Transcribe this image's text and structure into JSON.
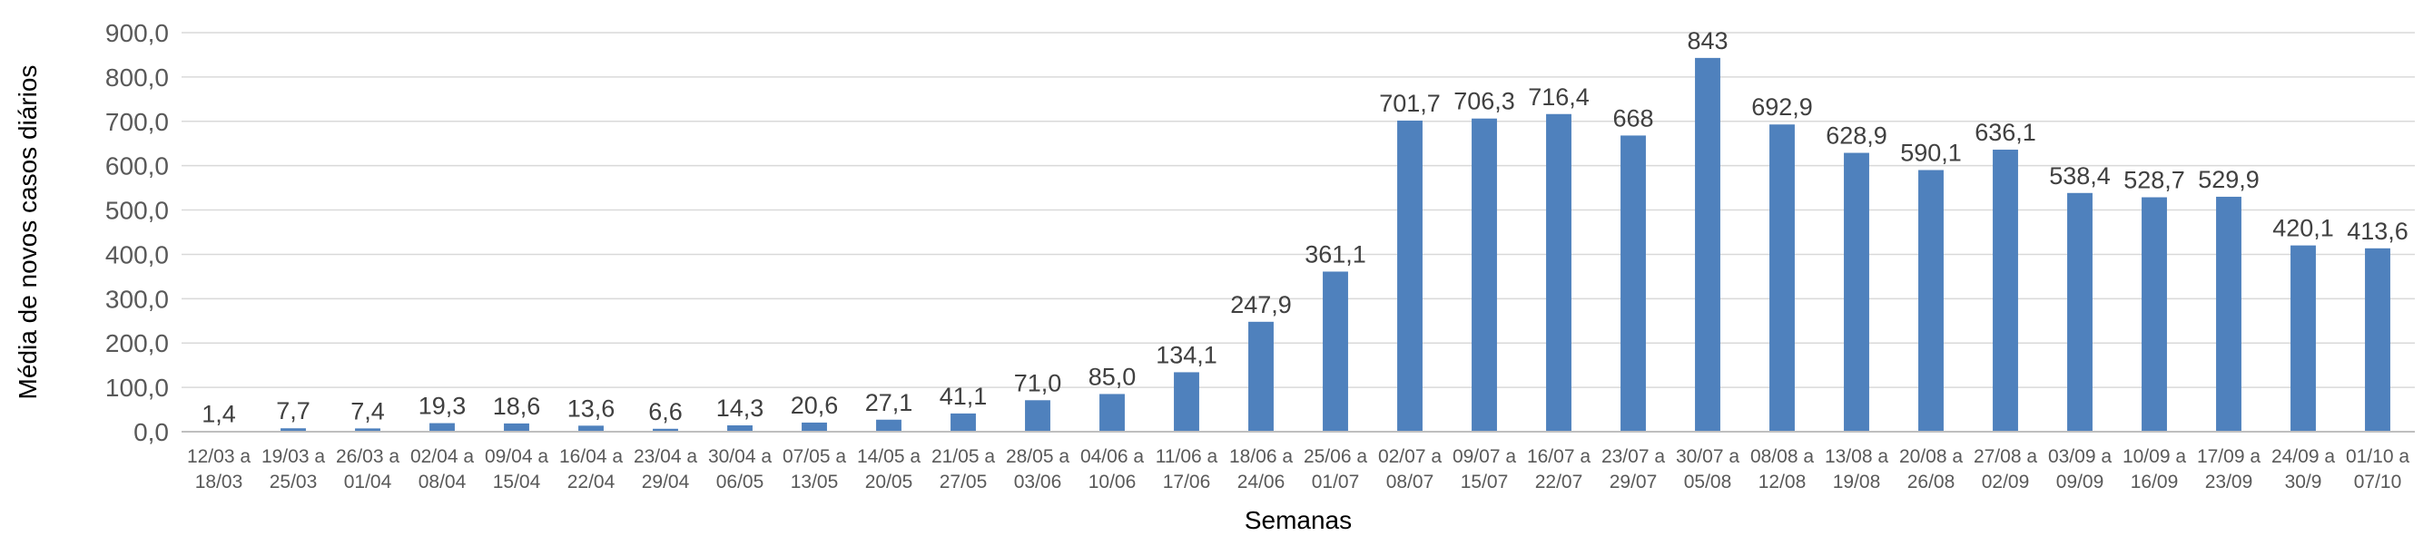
{
  "chart_data": {
    "type": "bar",
    "xlabel": "Semanas",
    "ylabel": "Média de novos casos diários",
    "ylim": [
      0,
      900
    ],
    "yticks": [
      "0,0",
      "100,0",
      "200,0",
      "300,0",
      "400,0",
      "500,0",
      "600,0",
      "700,0",
      "800,0",
      "900,0"
    ],
    "grid": true,
    "bar_color": "#4f81bd",
    "categories": [
      [
        "12/03 a",
        "18/03"
      ],
      [
        "19/03 a",
        "25/03"
      ],
      [
        "26/03 a",
        "01/04"
      ],
      [
        "02/04 a",
        "08/04"
      ],
      [
        "09/04 a",
        "15/04"
      ],
      [
        "16/04 a",
        "22/04"
      ],
      [
        "23/04 a",
        "29/04"
      ],
      [
        "30/04 a",
        "06/05"
      ],
      [
        "07/05 a",
        "13/05"
      ],
      [
        "14/05 a",
        "20/05"
      ],
      [
        "21/05 a",
        "27/05"
      ],
      [
        "28/05 a",
        "03/06"
      ],
      [
        "04/06 a",
        "10/06"
      ],
      [
        "11/06 a",
        "17/06"
      ],
      [
        "18/06 a",
        "24/06"
      ],
      [
        "25/06 a",
        "01/07"
      ],
      [
        "02/07 a",
        "08/07"
      ],
      [
        "09/07 a",
        "15/07"
      ],
      [
        "16/07 a",
        "22/07"
      ],
      [
        "23/07 a",
        "29/07"
      ],
      [
        "30/07 a",
        "05/08"
      ],
      [
        "08/08 a",
        "12/08"
      ],
      [
        "13/08 a",
        "19/08"
      ],
      [
        "20/08 a",
        "26/08"
      ],
      [
        "27/08 a",
        "02/09"
      ],
      [
        "03/09 a",
        "09/09"
      ],
      [
        "10/09 a",
        "16/09"
      ],
      [
        "17/09 a",
        "23/09"
      ],
      [
        "24/09 a",
        "30/9"
      ],
      [
        "01/10 a",
        "07/10"
      ]
    ],
    "values": [
      1.4,
      7.7,
      7.4,
      19.3,
      18.6,
      13.6,
      6.6,
      14.3,
      20.6,
      27.1,
      41.1,
      71.0,
      85.0,
      134.1,
      247.9,
      361.1,
      701.7,
      706.3,
      716.4,
      668,
      843,
      692.9,
      628.9,
      590.1,
      636.1,
      538.4,
      528.7,
      529.9,
      420.1,
      413.6
    ],
    "data_labels": [
      "1,4",
      "7,7",
      "7,4",
      "19,3",
      "18,6",
      "13,6",
      "6,6",
      "14,3",
      "20,6",
      "27,1",
      "41,1",
      "71,0",
      "85,0",
      "134,1",
      "247,9",
      "361,1",
      "701,7",
      "706,3",
      "716,4",
      "668",
      "843",
      "692,9",
      "628,9",
      "590,1",
      "636,1",
      "538,4",
      "528,7",
      "529,9",
      "420,1",
      "413,6"
    ]
  }
}
